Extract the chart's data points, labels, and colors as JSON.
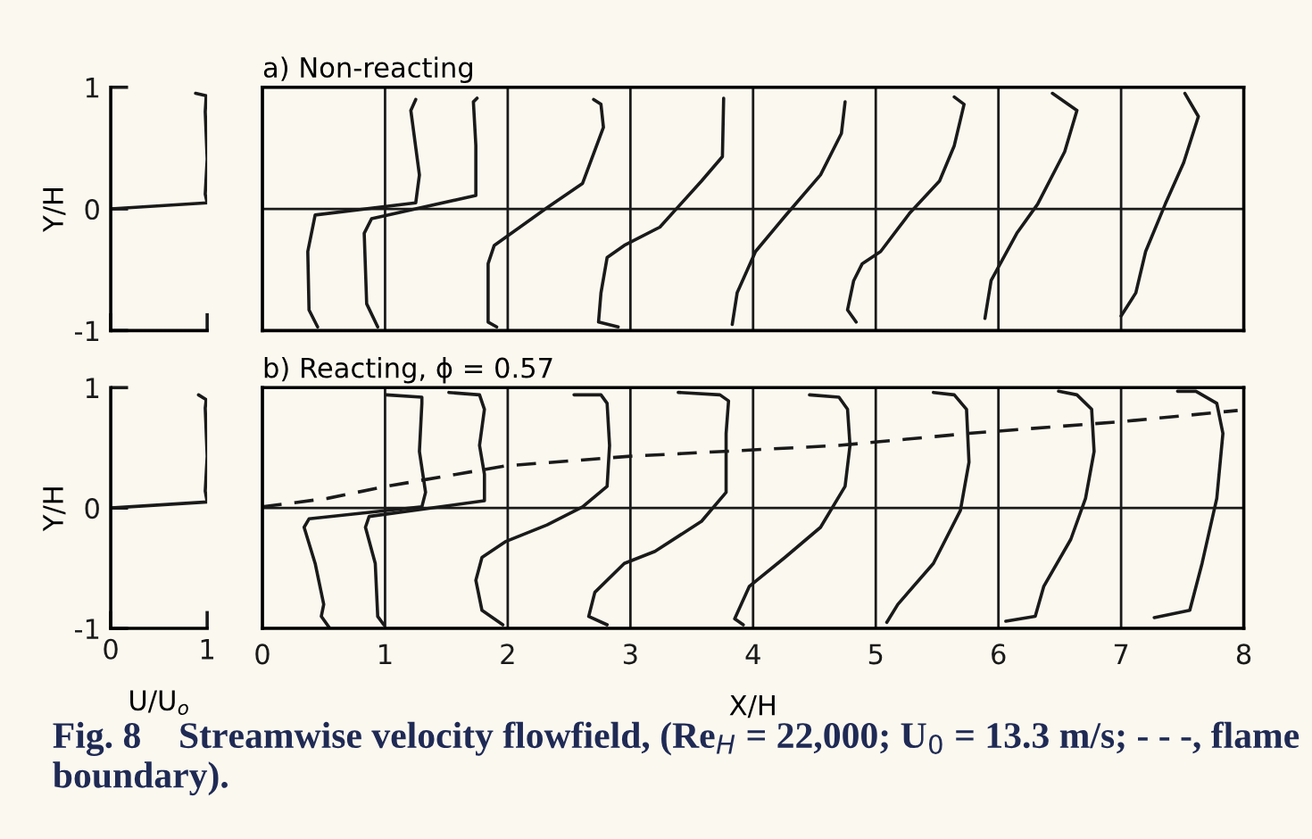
{
  "chart_data": [
    {
      "type": "line",
      "ylabel": "Y/H",
      "xlim": [
        0,
        1
      ],
      "ylim": [
        -1,
        1
      ],
      "xticks": [
        0,
        1
      ],
      "yticks": [
        -1,
        0,
        1
      ],
      "tick_labels": "y",
      "series": [
        {
          "color": "#1a1a1a",
          "x": [
            0.0,
            1.0,
            0.98,
            1.0,
            0.98,
            0.99,
            0.88
          ],
          "values": [
            0.0,
            0.05,
            0.12,
            0.41,
            0.8,
            0.93,
            0.95
          ]
        }
      ]
    },
    {
      "type": "line",
      "title": "a) Non-reacting",
      "xlim": [
        0,
        8
      ],
      "ylim": [
        -1,
        1
      ],
      "xticks": [
        0,
        1,
        2,
        3,
        4,
        5,
        6,
        7,
        8
      ],
      "yticks": [
        -1,
        0,
        1
      ],
      "tick_labels": false,
      "grid": true,
      "series": [
        {
          "color": "#1a1a1a",
          "x": [
            0.45,
            0.38,
            0.37,
            0.43,
            1.25,
            1.28,
            1.21,
            1.25
          ],
          "values": [
            -0.97,
            -0.83,
            -0.35,
            -0.05,
            0.05,
            0.28,
            0.81,
            0.9
          ]
        },
        {
          "color": "#1a1a1a",
          "x": [
            0.94,
            0.85,
            0.83,
            0.89,
            1.74,
            1.74,
            1.72,
            1.75
          ],
          "values": [
            -0.97,
            -0.78,
            -0.2,
            -0.08,
            0.11,
            0.52,
            0.88,
            0.91
          ]
        },
        {
          "color": "#1a1a1a",
          "x": [
            1.91,
            1.84,
            1.84,
            1.89,
            2.03,
            2.32,
            2.61,
            2.78,
            2.76,
            2.7
          ],
          "values": [
            -0.97,
            -0.93,
            -0.45,
            -0.3,
            -0.2,
            0.01,
            0.21,
            0.67,
            0.86,
            0.9
          ]
        },
        {
          "color": "#1a1a1a",
          "x": [
            2.9,
            2.74,
            2.76,
            2.81,
            2.95,
            3.24,
            3.58,
            3.75,
            3.76
          ],
          "values": [
            -0.97,
            -0.93,
            -0.69,
            -0.4,
            -0.3,
            -0.15,
            0.23,
            0.43,
            0.91
          ]
        },
        {
          "color": "#1a1a1a",
          "x": [
            3.83,
            3.87,
            4.02,
            4.26,
            4.55,
            4.72,
            4.75
          ],
          "values": [
            -0.95,
            -0.69,
            -0.35,
            -0.06,
            0.28,
            0.62,
            0.88
          ]
        },
        {
          "color": "#1a1a1a",
          "x": [
            4.84,
            4.77,
            4.82,
            4.89,
            5.04,
            5.28,
            5.52,
            5.64,
            5.72,
            5.64
          ],
          "values": [
            -0.93,
            -0.83,
            -0.59,
            -0.45,
            -0.35,
            -0.03,
            0.23,
            0.52,
            0.86,
            0.92
          ]
        },
        {
          "color": "#1a1a1a",
          "x": [
            5.89,
            5.94,
            6.15,
            6.32,
            6.54,
            6.64,
            6.44
          ],
          "values": [
            -0.9,
            -0.59,
            -0.2,
            0.04,
            0.47,
            0.81,
            0.95
          ]
        },
        {
          "color": "#1a1a1a",
          "x": [
            7.0,
            7.12,
            7.2,
            7.36,
            7.51,
            7.63,
            7.52
          ],
          "values": [
            -0.88,
            -0.69,
            -0.35,
            0.04,
            0.38,
            0.76,
            0.95
          ]
        }
      ]
    },
    {
      "type": "line",
      "ylabel": "Y/H",
      "xlabel": "U/U$_{o}$",
      "xlim": [
        0,
        1
      ],
      "ylim": [
        -1,
        1
      ],
      "xticks": [
        0,
        1
      ],
      "yticks": [
        -1,
        0,
        1
      ],
      "series": [
        {
          "color": "#1a1a1a",
          "x": [
            0.0,
            1.0,
            0.98,
            1.0,
            0.98,
            0.99,
            0.91
          ],
          "values": [
            0.0,
            0.05,
            0.14,
            0.43,
            0.83,
            0.9,
            0.94
          ]
        }
      ]
    },
    {
      "type": "line",
      "title": "b) Reacting, ϕ = 0.57",
      "xlabel": "X/H",
      "xlim": [
        0,
        8
      ],
      "ylim": [
        -1,
        1
      ],
      "xticks": [
        0,
        1,
        2,
        3,
        4,
        5,
        6,
        7,
        8
      ],
      "yticks": [
        -1,
        0,
        1
      ],
      "tick_labels": "x",
      "grid": true,
      "annotations": [
        "Fig. 8    Streamwise velocity flowfield, (Re$_{H}$ = 22,000; U$_{0}$ = 13.3 m/s; - - -, flame boundary)."
      ],
      "series": [
        {
          "color": "#1a1a1a",
          "x": [
            0.55,
            0.48,
            0.5,
            0.43,
            0.34,
            0.38,
            1.3,
            1.33,
            1.28,
            1.3,
            1.3,
            1.01
          ],
          "values": [
            -1.0,
            -0.9,
            -0.8,
            -0.46,
            -0.16,
            -0.09,
            0.01,
            0.13,
            0.47,
            0.87,
            0.92,
            0.94
          ]
        },
        {
          "color": "#1a1a1a",
          "x": [
            0.99,
            0.94,
            0.92,
            0.84,
            0.87,
            1.81,
            1.81,
            1.77,
            1.81,
            1.77,
            1.52
          ],
          "values": [
            -0.97,
            -0.9,
            -0.46,
            -0.16,
            -0.07,
            0.06,
            0.28,
            0.52,
            0.82,
            0.94,
            0.96
          ]
        },
        {
          "color": "#1a1a1a",
          "x": [
            1.96,
            1.79,
            1.74,
            1.79,
            1.98,
            2.32,
            2.61,
            2.81,
            2.83,
            2.81,
            2.76,
            2.54
          ],
          "values": [
            -0.97,
            -0.85,
            -0.6,
            -0.41,
            -0.28,
            -0.14,
            0.01,
            0.18,
            0.52,
            0.87,
            0.94,
            0.94
          ]
        },
        {
          "color": "#1a1a1a",
          "x": [
            2.81,
            2.66,
            2.71,
            2.95,
            3.2,
            3.58,
            3.78,
            3.78,
            3.8,
            3.73,
            3.39
          ],
          "values": [
            -0.97,
            -0.9,
            -0.7,
            -0.46,
            -0.36,
            -0.11,
            0.13,
            0.62,
            0.89,
            0.94,
            0.96
          ]
        },
        {
          "color": "#1a1a1a",
          "x": [
            3.92,
            3.85,
            3.97,
            4.26,
            4.55,
            4.75,
            4.79,
            4.77,
            4.7,
            4.46
          ],
          "values": [
            -0.97,
            -0.92,
            -0.65,
            -0.41,
            -0.16,
            0.18,
            0.52,
            0.82,
            0.92,
            0.94
          ]
        },
        {
          "color": "#1a1a1a",
          "x": [
            5.09,
            5.18,
            5.47,
            5.69,
            5.76,
            5.74,
            5.64,
            5.47
          ],
          "values": [
            -0.95,
            -0.8,
            -0.46,
            -0.02,
            0.38,
            0.82,
            0.94,
            0.96
          ]
        },
        {
          "color": "#1a1a1a",
          "x": [
            6.06,
            6.3,
            6.37,
            6.59,
            6.71,
            6.78,
            6.76,
            6.64,
            6.49
          ],
          "values": [
            -0.94,
            -0.9,
            -0.65,
            -0.26,
            0.08,
            0.47,
            0.82,
            0.94,
            0.97
          ]
        },
        {
          "color": "#1a1a1a",
          "x": [
            7.27,
            7.56,
            7.66,
            7.78,
            7.83,
            7.78,
            7.61,
            7.46
          ],
          "values": [
            -0.91,
            -0.85,
            -0.46,
            0.08,
            0.62,
            0.87,
            0.97,
            0.97
          ]
        },
        {
          "color": "#1a1a1a",
          "line_style": "dashed",
          "x": [
            0.0,
            0.53,
            1.01,
            1.98,
            3.0,
            4.7,
            5.76,
            7.03,
            7.95
          ],
          "values": [
            0.01,
            0.08,
            0.18,
            0.35,
            0.43,
            0.52,
            0.62,
            0.72,
            0.81
          ]
        }
      ]
    }
  ]
}
